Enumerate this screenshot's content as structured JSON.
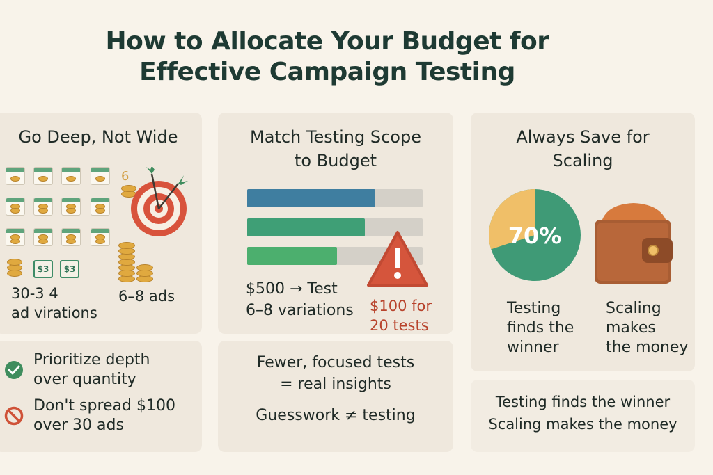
{
  "title": {
    "line1": "How to Allocate Your Budget for",
    "line2": "Effective Campaign Testing"
  },
  "panel1": {
    "title": "Go Deep, Not Wide",
    "target_number": "6",
    "bill_label_1": "$3",
    "bill_label_2": "$3",
    "wide_caption_line1": "30-3 4",
    "wide_caption_line2": "ad virations",
    "deep_caption": "6–8 ads",
    "do_text_line1": "Prioritize depth",
    "do_text_line2": "over quantity",
    "dont_text_line1": "Don't spread $100",
    "dont_text_line2": "over 30 ads",
    "check_icon": "check-circle-icon",
    "no_icon": "prohibited-icon"
  },
  "panel2": {
    "title_line1": "Match Testing Scope",
    "title_line2": "to Budget",
    "bars": [
      {
        "fill": 0.73,
        "color": "#3f7ea0"
      },
      {
        "fill": 0.67,
        "color": "#3f9f76"
      },
      {
        "fill": 0.51,
        "color": "#4caf6e"
      }
    ],
    "budget_line1": "$500 → Test",
    "budget_line2": "6–8 variations",
    "warning_line1": "$100 for",
    "warning_line2": "20 tests",
    "bottom_line1": "Fewer, focused tests",
    "bottom_line2": "= real insights",
    "bottom_line3": "Guesswork ≠ testing"
  },
  "panel3": {
    "title_line1": "Always Save for",
    "title_line2": "Scaling",
    "pie_percent": 70,
    "pie_label": "70%",
    "pie_colors": {
      "testing": "#3f9a76",
      "reserve": "#f0bf68"
    },
    "left_caption_line1": "Testing",
    "left_caption_line2": "finds the",
    "left_caption_line3": "winner",
    "right_caption_line1": "Scaling",
    "right_caption_line2": "makes",
    "right_caption_line3": "the money",
    "bottom_line1": "Testing finds the winner",
    "bottom_line2": "Scaling makes the money"
  }
}
